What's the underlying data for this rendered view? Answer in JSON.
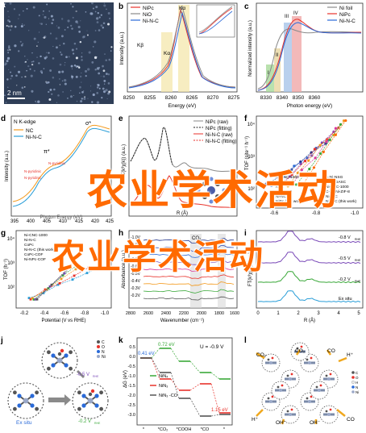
{
  "panels": [
    {
      "id": "a",
      "letter": "a",
      "scalebar": "2 nm"
    },
    {
      "id": "b",
      "letter": "b",
      "xlabel": "Energy (eV)",
      "ylabel": "Intensity (a.u.)",
      "xticks": [
        "8250",
        "8255",
        "8260",
        "8265",
        "8270",
        "8275"
      ],
      "legend": [
        "NiPc",
        "NiO",
        "Ni-N-C"
      ],
      "annotations": [
        "Kβ",
        "Kα",
        "Kα"
      ]
    },
    {
      "id": "c",
      "letter": "c",
      "xlabel": "Photon energy (eV)",
      "ylabel": "Normalized intensity (a.u.)",
      "xticks": [
        "8330",
        "8340",
        "8350",
        "8360"
      ],
      "legend": [
        "Ni foil",
        "NiPc",
        "Ni-N-C"
      ],
      "annotations": [
        "I",
        "II",
        "III",
        "IV"
      ]
    },
    {
      "id": "d",
      "letter": "d",
      "title": "N K-edge",
      "legend": [
        "NC",
        "Ni-N-C"
      ],
      "ylabel": "Intensity (a.u.)",
      "xlabel": "Photon Energy (eV)",
      "xticks": [
        "395",
        "400",
        "405",
        "410",
        "415",
        "420",
        "425"
      ],
      "annotations": [
        "σ*",
        "π*",
        "N-pyridinic",
        "N-pyridinic",
        "N-pyridinic"
      ]
    },
    {
      "id": "e",
      "letter": "e",
      "legend": [
        "NiPc (raw)",
        "NiPc (fitting)",
        "Ni-N-C (raw)",
        "Ni-N-C (fitting)"
      ],
      "ylabel": "FT(k³χ(k)) (a.u.)",
      "xlabel": "R (Å)"
    },
    {
      "id": "f",
      "letter": "f",
      "ylabel": "TOF (site⁻¹ h⁻¹)",
      "xlabel": "Potential (V vs RHE)",
      "xticks": [
        "-0.6",
        "-0.8",
        "-1.0"
      ],
      "legend_left": [
        "Ni-CNC-1000",
        "Ni-NC-300",
        "NiPc",
        "Ni-NC-45",
        "Ni-NC-10",
        "NiPc (this work)"
      ],
      "legend_right": [
        "A-Ni-NSG",
        "NiFe-DASC",
        "Ni-NPC-1000",
        "C-Zn-Ni-ZIF-8",
        "Ni-N-C",
        "Ni-N-C (this work)"
      ],
      "yticks": [
        "10⁴",
        "10³",
        "10²"
      ]
    },
    {
      "id": "g",
      "letter": "g",
      "ylabel": "TOF (h⁻¹)",
      "xlabel": "Potential (V vs RHE)",
      "xticks": [
        "-0.2",
        "-0.4",
        "-0.6",
        "-0.8",
        "-1.0"
      ],
      "yticks": [
        "10⁴",
        "10³",
        "10²"
      ],
      "legend": [
        "Ni-CNC-1000",
        "Ni-N-C",
        "CoPc",
        "Ni-N-C (this work)",
        "CoPc-COF",
        "Ni-NPc-COF"
      ]
    },
    {
      "id": "h",
      "letter": "h",
      "ylabel": "Absorbance (a.u.)",
      "xlabel": "Wavenumber (cm⁻¹)",
      "xticks": [
        "2800",
        "2600",
        "2400",
        "2200",
        "2000",
        "1800",
        "1600"
      ],
      "levels": [
        "-1.0V",
        "-0.9V",
        "-0.8V",
        "-0.7V",
        "-0.6V",
        "-0.5V",
        "-0.4V",
        "-0.3V",
        "-0.2V"
      ],
      "annotations": [
        "CO₂"
      ]
    },
    {
      "id": "i",
      "letter": "i",
      "ylabel": "FT(k³χ(k)) (a.u.)",
      "xlabel": "R (Å)",
      "xticks": [
        "0",
        "1",
        "2",
        "3",
        "4",
        "5"
      ],
      "curves": [
        "-0.8 V",
        "-0.5 V",
        "-0.2 V",
        "Ex situ"
      ],
      "subscript": "RHE"
    },
    {
      "id": "j",
      "letter": "j",
      "labels": [
        "Ex situ",
        "-0.5 V",
        "-0.2 V"
      ],
      "subscript": "RHE",
      "atoms": [
        "C",
        "O",
        "N",
        "Ni"
      ]
    },
    {
      "id": "k",
      "letter": "k",
      "ylabel": "ΔG (eV)",
      "title": "U = -0.9 V",
      "xticks": [
        "*",
        "*CO₂",
        "*COOH",
        "*CO",
        "*"
      ],
      "values": [
        "0.41 eV",
        "0.72 eV",
        "1.15 eV"
      ],
      "legend": [
        "NiN₄",
        "NiN₃",
        "NiN₃ -CO"
      ],
      "yticks": [
        "0.5",
        "0.0",
        "-0.5",
        "-1.0",
        "-1.5",
        "-2.0",
        "-2.5",
        "-3.0"
      ]
    },
    {
      "id": "l",
      "letter": "l",
      "labels": [
        "CO₂",
        "CO₂",
        "CO",
        "H⁺",
        "H⁺",
        "OH⁻",
        "OH⁻",
        "CO"
      ],
      "atoms": [
        "C",
        "O",
        "H",
        "N",
        "Ni"
      ]
    }
  ],
  "watermark": [
    "农业学术活动",
    "农业学术活动"
  ],
  "colors": {
    "red": "#e8322b",
    "blue": "#2a6ad8",
    "gray": "#8a8a8a",
    "green": "#3aa839",
    "orange": "#ff6a00",
    "navy": "#1c2e86"
  }
}
